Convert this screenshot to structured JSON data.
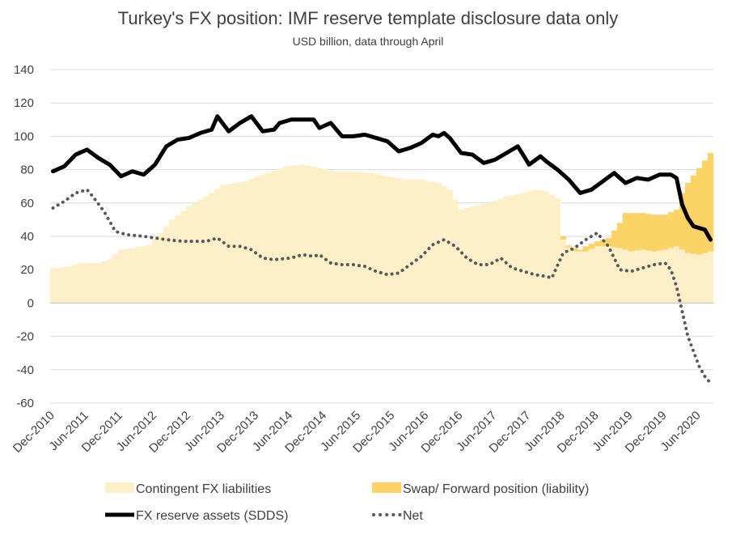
{
  "chart_data": {
    "type": "area",
    "title": "Turkey's FX position: IMF reserve template disclosure data only",
    "subtitle": "USD billion, data through April",
    "xlabel": "",
    "ylabel": "",
    "ylim": [
      -60,
      140
    ],
    "yticks": [
      -60,
      -40,
      -20,
      0,
      20,
      40,
      60,
      80,
      100,
      120,
      140
    ],
    "grid": true,
    "legend_position": "bottom",
    "x_tick_labels": [
      "Dec-2010",
      "Jun-2011",
      "Dec-2011",
      "Jun-2012",
      "Dec-2012",
      "Jun-2013",
      "Dec-2013",
      "Jun-2014",
      "Dec-2014",
      "Jun-2015",
      "Dec-2015",
      "Jun-2016",
      "Dec-2016",
      "Jun-2017",
      "Dec-2017",
      "Jun-2018",
      "Dec-2018",
      "Jun-2019",
      "Dec-2019",
      "Jun-2020"
    ],
    "x_tick_months": [
      0,
      6,
      12,
      18,
      24,
      30,
      36,
      42,
      48,
      54,
      60,
      66,
      72,
      78,
      84,
      90,
      96,
      102,
      108,
      114
    ],
    "n_months": 117,
    "colors": {
      "contingent": "#fdf0c8",
      "swap": "#fcd366",
      "reserve": "#000000",
      "net": "#595959",
      "grid": "#d9d9d9",
      "axis": "#bfbfbf"
    },
    "series": [
      {
        "name": "Contingent FX liabilities",
        "kind": "bars",
        "anchors": [
          [
            0,
            21
          ],
          [
            3,
            22
          ],
          [
            5,
            24
          ],
          [
            8,
            24
          ],
          [
            10,
            26
          ],
          [
            12,
            32
          ],
          [
            14,
            33
          ],
          [
            17,
            35
          ],
          [
            19,
            42
          ],
          [
            21,
            50
          ],
          [
            24,
            58
          ],
          [
            26,
            62
          ],
          [
            28,
            66
          ],
          [
            30,
            71
          ],
          [
            32,
            72
          ],
          [
            34,
            73
          ],
          [
            36,
            76
          ],
          [
            38,
            78
          ],
          [
            41,
            82
          ],
          [
            44,
            83
          ],
          [
            47,
            81
          ],
          [
            50,
            79
          ],
          [
            53,
            79
          ],
          [
            56,
            78
          ],
          [
            59,
            76
          ],
          [
            62,
            74
          ],
          [
            65,
            74
          ],
          [
            68,
            72
          ],
          [
            70,
            68
          ],
          [
            72,
            56
          ],
          [
            74,
            58
          ],
          [
            77,
            60
          ],
          [
            80,
            64
          ],
          [
            83,
            66
          ],
          [
            85,
            68
          ],
          [
            87,
            67
          ],
          [
            89,
            63
          ],
          [
            90,
            38
          ],
          [
            92,
            31
          ],
          [
            94,
            31
          ],
          [
            96,
            34
          ],
          [
            98,
            34
          ],
          [
            100,
            33
          ],
          [
            102,
            31
          ],
          [
            104,
            32
          ],
          [
            106,
            31
          ],
          [
            108,
            32
          ],
          [
            110,
            34
          ],
          [
            112,
            30
          ],
          [
            114,
            29
          ],
          [
            116,
            31
          ]
        ]
      },
      {
        "name": "Swap/ Forward position (liability)",
        "kind": "bars-stacked",
        "start_month": 90,
        "anchors": [
          [
            90,
            2
          ],
          [
            91,
            -1
          ],
          [
            92,
            2
          ],
          [
            93,
            1
          ],
          [
            94,
            3
          ],
          [
            96,
            3
          ],
          [
            98,
            5
          ],
          [
            99,
            10
          ],
          [
            100,
            15
          ],
          [
            101,
            22
          ],
          [
            102,
            23
          ],
          [
            104,
            22
          ],
          [
            106,
            22
          ],
          [
            108,
            21
          ],
          [
            110,
            22
          ],
          [
            111,
            34
          ],
          [
            112,
            42
          ],
          [
            114,
            52
          ],
          [
            116,
            59
          ]
        ]
      },
      {
        "name": "FX reserve assets (SDDS)",
        "kind": "line",
        "anchors": [
          [
            0,
            79
          ],
          [
            2,
            82
          ],
          [
            4,
            89
          ],
          [
            6,
            92
          ],
          [
            8,
            87
          ],
          [
            10,
            83
          ],
          [
            12,
            76
          ],
          [
            14,
            79
          ],
          [
            16,
            77
          ],
          [
            18,
            83
          ],
          [
            20,
            94
          ],
          [
            22,
            98
          ],
          [
            24,
            99
          ],
          [
            26,
            102
          ],
          [
            28,
            104
          ],
          [
            29,
            112
          ],
          [
            31,
            103
          ],
          [
            33,
            108
          ],
          [
            35,
            112
          ],
          [
            37,
            103
          ],
          [
            39,
            104
          ],
          [
            40,
            108
          ],
          [
            42,
            110
          ],
          [
            44,
            110
          ],
          [
            46,
            110
          ],
          [
            47,
            105
          ],
          [
            49,
            108
          ],
          [
            51,
            100
          ],
          [
            53,
            100
          ],
          [
            55,
            101
          ],
          [
            57,
            99
          ],
          [
            59,
            97
          ],
          [
            61,
            91
          ],
          [
            63,
            93
          ],
          [
            65,
            96
          ],
          [
            67,
            101
          ],
          [
            68,
            100
          ],
          [
            69,
            102
          ],
          [
            70,
            99
          ],
          [
            72,
            90
          ],
          [
            74,
            89
          ],
          [
            76,
            84
          ],
          [
            78,
            86
          ],
          [
            80,
            90
          ],
          [
            82,
            94
          ],
          [
            84,
            83
          ],
          [
            86,
            88
          ],
          [
            87,
            85
          ],
          [
            89,
            80
          ],
          [
            91,
            74
          ],
          [
            93,
            66
          ],
          [
            95,
            68
          ],
          [
            97,
            73
          ],
          [
            99,
            78
          ],
          [
            101,
            72
          ],
          [
            103,
            75
          ],
          [
            105,
            74
          ],
          [
            107,
            77
          ],
          [
            109,
            77
          ],
          [
            110,
            75
          ],
          [
            111,
            59
          ],
          [
            112,
            51
          ],
          [
            113,
            46
          ],
          [
            115,
            44
          ],
          [
            116,
            38
          ]
        ]
      },
      {
        "name": "Net",
        "kind": "dots",
        "anchors": [
          [
            0,
            57
          ],
          [
            2,
            61
          ],
          [
            4,
            66
          ],
          [
            6,
            68
          ],
          [
            7,
            64
          ],
          [
            9,
            55
          ],
          [
            11,
            43
          ],
          [
            13,
            41
          ],
          [
            16,
            40
          ],
          [
            20,
            38
          ],
          [
            23,
            37
          ],
          [
            25,
            37
          ],
          [
            27,
            37
          ],
          [
            29,
            39
          ],
          [
            31,
            34
          ],
          [
            33,
            34
          ],
          [
            35,
            32
          ],
          [
            37,
            27
          ],
          [
            39,
            26
          ],
          [
            42,
            27
          ],
          [
            44,
            29
          ],
          [
            46,
            28
          ],
          [
            47,
            29
          ],
          [
            49,
            24
          ],
          [
            51,
            23
          ],
          [
            53,
            23
          ],
          [
            55,
            22
          ],
          [
            57,
            19
          ],
          [
            59,
            17
          ],
          [
            61,
            18
          ],
          [
            63,
            23
          ],
          [
            65,
            28
          ],
          [
            67,
            35
          ],
          [
            69,
            38
          ],
          [
            71,
            34
          ],
          [
            73,
            27
          ],
          [
            75,
            23
          ],
          [
            77,
            23
          ],
          [
            79,
            27
          ],
          [
            81,
            21
          ],
          [
            83,
            19
          ],
          [
            85,
            17
          ],
          [
            87,
            16
          ],
          [
            88,
            15
          ],
          [
            90,
            30
          ],
          [
            92,
            33
          ],
          [
            94,
            38
          ],
          [
            96,
            42
          ],
          [
            98,
            34
          ],
          [
            100,
            20
          ],
          [
            102,
            19
          ],
          [
            104,
            21
          ],
          [
            106,
            23
          ],
          [
            108,
            24
          ],
          [
            109,
            20
          ],
          [
            110,
            10
          ],
          [
            111,
            -5
          ],
          [
            112,
            -20
          ],
          [
            114,
            -38
          ],
          [
            115,
            -44
          ],
          [
            116,
            -48
          ]
        ]
      }
    ],
    "legend": [
      {
        "label": "Contingent FX liabilities",
        "swatch": "box",
        "color": "#fdf0c8"
      },
      {
        "label": "Swap/ Forward position (liability)",
        "swatch": "box",
        "color": "#fcd366"
      },
      {
        "label": "FX reserve assets (SDDS)",
        "swatch": "line",
        "color": "#000000"
      },
      {
        "label": "Net",
        "swatch": "dots",
        "color": "#595959"
      }
    ]
  }
}
